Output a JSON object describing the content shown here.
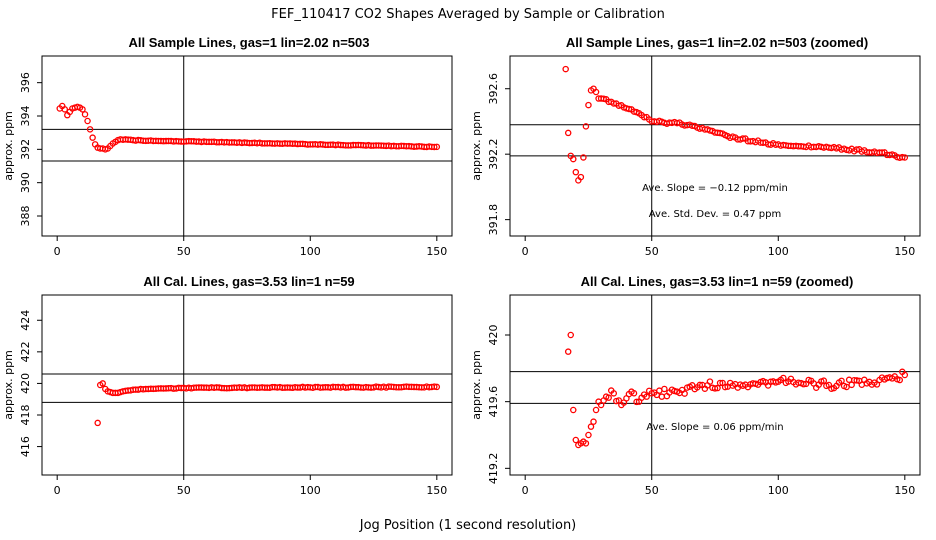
{
  "title": "FEF_110417  CO2 Shapes Averaged by Sample or Calibration",
  "x_axis_label": "Jog Position (1 second resolution)",
  "colors": {
    "points": "#ff0000",
    "lines": "#000000"
  },
  "chart_data": [
    {
      "id": "p1",
      "type": "scatter",
      "title": "All Sample Lines, gas=1 lin=2.02 n=503",
      "xlabel": "",
      "ylabel": "approx. ppm",
      "xlim": [
        -6,
        156
      ],
      "ylim": [
        386.8,
        397.6
      ],
      "xticks": [
        0,
        50,
        100,
        150
      ],
      "yticks": [
        388,
        390,
        392,
        394,
        396
      ],
      "vline": 50,
      "hlines": [
        393.2,
        391.3
      ],
      "annotations": [],
      "anchors": [
        [
          1,
          394.45
        ],
        [
          2,
          394.6
        ],
        [
          3,
          394.4
        ],
        [
          4,
          394.05
        ],
        [
          5,
          394.25
        ],
        [
          6,
          394.45
        ],
        [
          7,
          394.5
        ],
        [
          8,
          394.55
        ],
        [
          9,
          394.5
        ],
        [
          10,
          394.4
        ],
        [
          11,
          394.1
        ],
        [
          12,
          393.7
        ],
        [
          13,
          393.2
        ],
        [
          14,
          392.7
        ],
        [
          15,
          392.3
        ],
        [
          16,
          392.1
        ],
        [
          17,
          392.05
        ],
        [
          18,
          392.05
        ],
        [
          19,
          392.0
        ],
        [
          20,
          392.05
        ],
        [
          21,
          392.2
        ],
        [
          22,
          392.35
        ],
        [
          23,
          392.45
        ],
        [
          24,
          392.55
        ],
        [
          25,
          392.6
        ],
        [
          30,
          392.55
        ],
        [
          40,
          392.5
        ],
        [
          60,
          392.45
        ],
        [
          100,
          392.3
        ],
        [
          150,
          392.15
        ]
      ],
      "noise": 0.02
    },
    {
      "id": "p2",
      "type": "scatter",
      "title": "All Sample Lines, gas=1 lin=2.02 n=503 (zoomed)",
      "xlabel": "",
      "ylabel": "approx. ppm",
      "xlim": [
        -6,
        156
      ],
      "ylim": [
        391.7,
        392.8
      ],
      "xticks": [
        0,
        50,
        100,
        150
      ],
      "yticks": [
        391.8,
        392.2,
        392.6
      ],
      "vline": 50,
      "hlines": [
        392.38,
        392.19
      ],
      "annotations": [
        "Ave. Slope =  −0.12  ppm/min",
        "Ave. Std. Dev. =  0.47  ppm"
      ],
      "anchors": [
        [
          16,
          392.72
        ],
        [
          17,
          392.33
        ],
        [
          18,
          392.19
        ],
        [
          19,
          392.17
        ],
        [
          20,
          392.09
        ],
        [
          21,
          392.04
        ],
        [
          22,
          392.06
        ],
        [
          23,
          392.18
        ],
        [
          24,
          392.37
        ],
        [
          25,
          392.5
        ],
        [
          26,
          392.59
        ],
        [
          27,
          392.6
        ],
        [
          28,
          392.58
        ],
        [
          29,
          392.54
        ],
        [
          30,
          392.54
        ],
        [
          35,
          392.51
        ],
        [
          40,
          392.48
        ],
        [
          45,
          392.45
        ],
        [
          50,
          392.4
        ],
        [
          60,
          392.39
        ],
        [
          70,
          392.36
        ],
        [
          80,
          392.31
        ],
        [
          90,
          392.28
        ],
        [
          100,
          392.26
        ],
        [
          120,
          392.24
        ],
        [
          140,
          392.21
        ],
        [
          150,
          392.18
        ]
      ],
      "noise": 0.008
    },
    {
      "id": "p3",
      "type": "scatter",
      "title": "All Cal. Lines, gas=3.53 lin=1 n=59",
      "xlabel": "",
      "ylabel": "approx. ppm",
      "xlim": [
        -6,
        156
      ],
      "ylim": [
        414.2,
        425.6
      ],
      "xticks": [
        0,
        50,
        100,
        150
      ],
      "yticks": [
        416,
        418,
        420,
        422,
        424
      ],
      "vline": 50,
      "hlines": [
        420.6,
        418.8
      ],
      "annotations": [],
      "anchors": [
        [
          16,
          417.5
        ],
        [
          17,
          419.9
        ],
        [
          18,
          420.0
        ],
        [
          19,
          419.65
        ],
        [
          20,
          419.5
        ],
        [
          21,
          419.45
        ],
        [
          22,
          419.4
        ],
        [
          23,
          419.4
        ],
        [
          24,
          419.4
        ],
        [
          25,
          419.45
        ],
        [
          26,
          419.5
        ],
        [
          28,
          419.55
        ],
        [
          30,
          419.6
        ],
        [
          35,
          419.65
        ],
        [
          40,
          419.68
        ],
        [
          60,
          419.72
        ],
        [
          100,
          419.75
        ],
        [
          150,
          419.78
        ]
      ],
      "noise": 0.03
    },
    {
      "id": "p4",
      "type": "scatter",
      "title": "All Cal. Lines, gas=3.53 lin=1 n=59 (zoomed)",
      "xlabel": "",
      "ylabel": "approx. ppm",
      "xlim": [
        -6,
        156
      ],
      "ylim": [
        419.16,
        420.24
      ],
      "xticks": [
        0,
        50,
        100,
        150
      ],
      "yticks": [
        419.2,
        419.6,
        420.0
      ],
      "vline": 50,
      "hlines": [
        419.78,
        419.59
      ],
      "annotations": [
        "Ave. Slope =  0.06  ppm/min"
      ],
      "anchors": [
        [
          17,
          419.9
        ],
        [
          18,
          420.0
        ],
        [
          19,
          419.55
        ],
        [
          20,
          419.37
        ],
        [
          21,
          419.34
        ],
        [
          22,
          419.35
        ],
        [
          23,
          419.36
        ],
        [
          24,
          419.35
        ],
        [
          25,
          419.4
        ],
        [
          26,
          419.45
        ],
        [
          27,
          419.48
        ],
        [
          28,
          419.55
        ],
        [
          29,
          419.6
        ],
        [
          30,
          419.58
        ],
        [
          32,
          419.63
        ],
        [
          35,
          419.65
        ],
        [
          38,
          419.58
        ],
        [
          40,
          419.62
        ],
        [
          42,
          419.66
        ],
        [
          45,
          419.6
        ],
        [
          48,
          419.63
        ],
        [
          50,
          419.65
        ],
        [
          60,
          419.66
        ],
        [
          70,
          419.7
        ],
        [
          80,
          419.69
        ],
        [
          90,
          419.71
        ],
        [
          100,
          419.72
        ],
        [
          120,
          419.7
        ],
        [
          140,
          419.73
        ],
        [
          150,
          419.76
        ]
      ],
      "noise": 0.025
    }
  ]
}
